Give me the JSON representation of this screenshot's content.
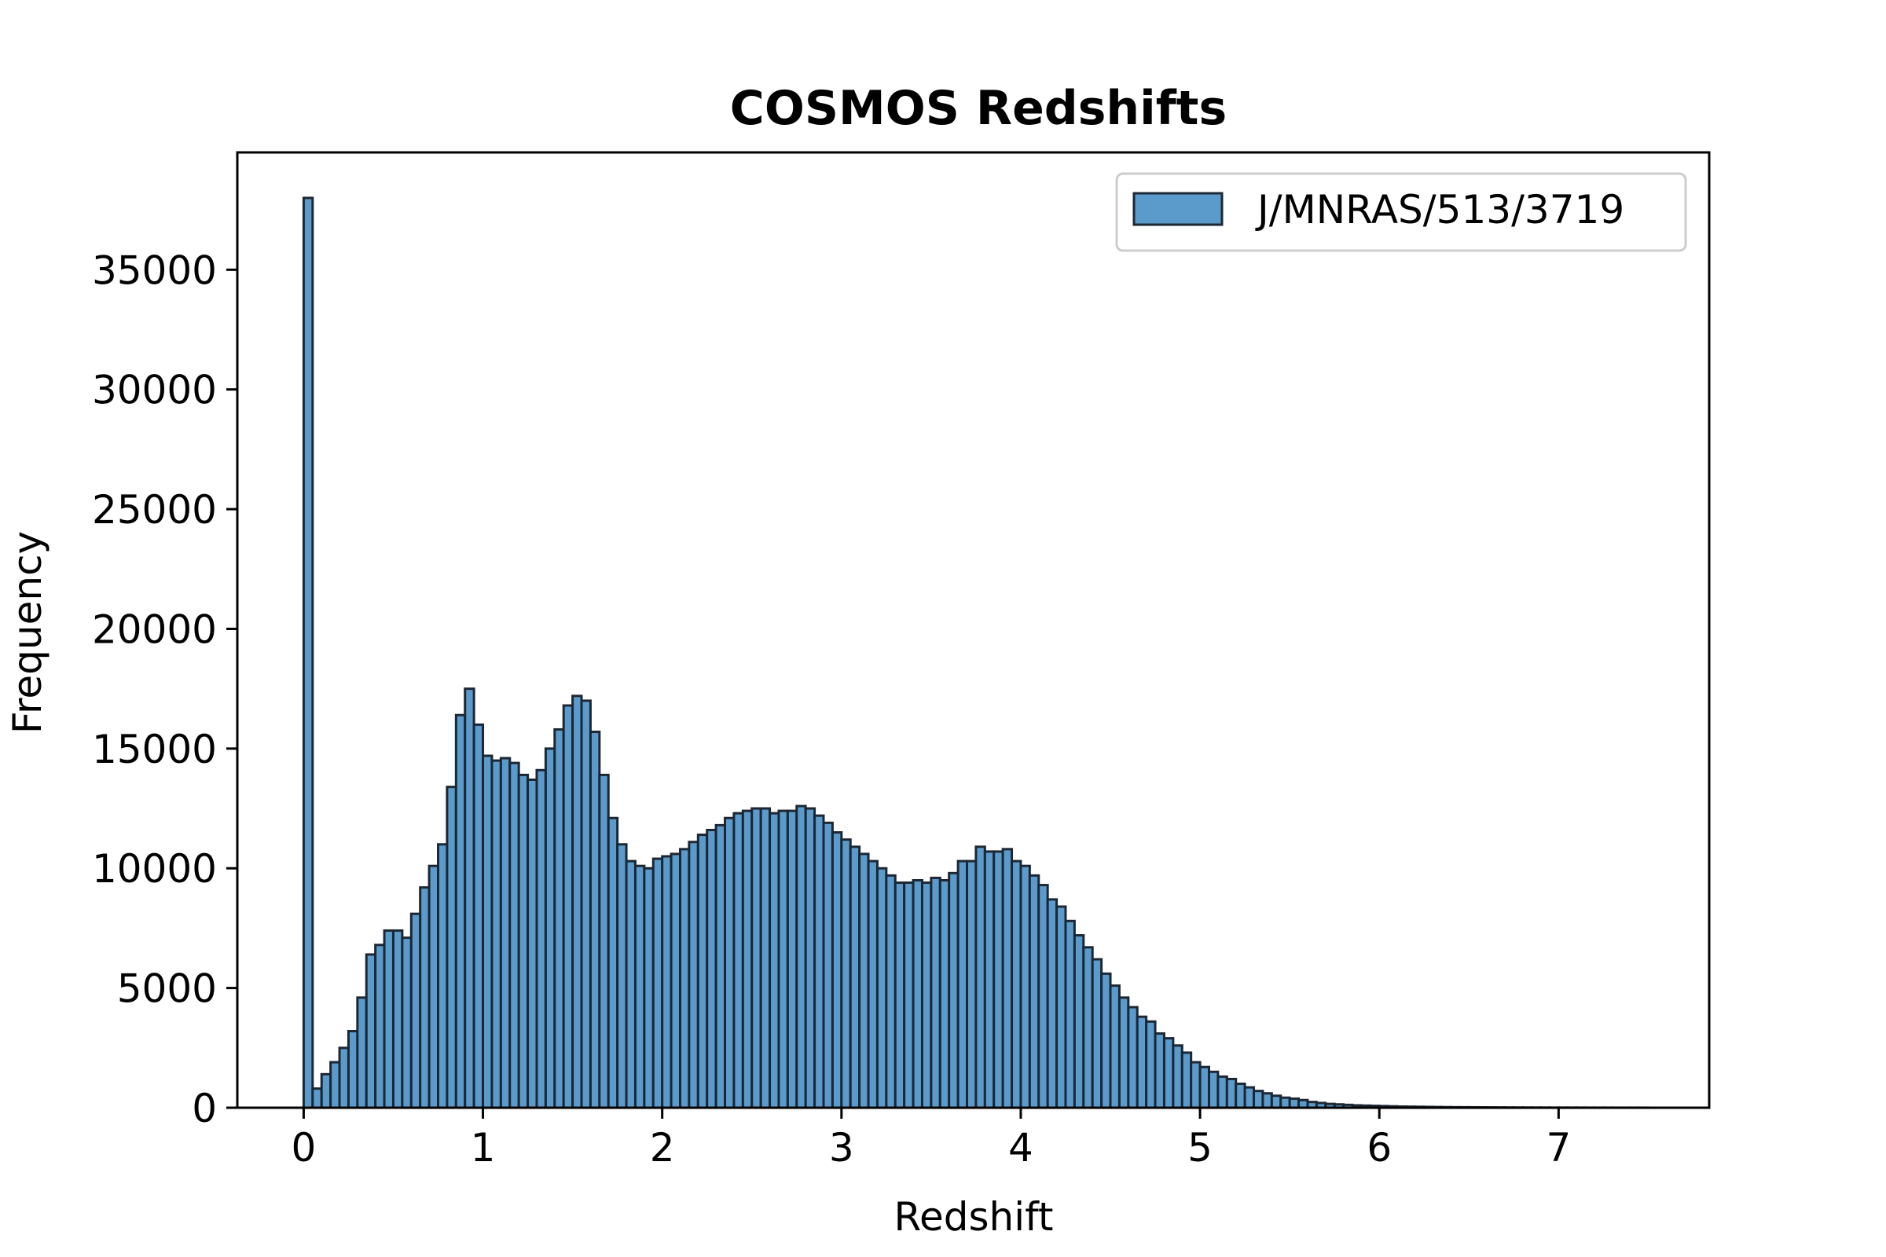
{
  "chart_data": {
    "type": "bar",
    "title": "COSMOS Redshifts",
    "xlabel": "Redshift",
    "ylabel": "Frequency",
    "xlim": [
      -0.37,
      7.84
    ],
    "ylim": [
      0,
      39900
    ],
    "xticks": [
      "0",
      "1",
      "2",
      "3",
      "4",
      "5",
      "6",
      "7"
    ],
    "yticks": [
      "0",
      "5000",
      "10000",
      "15000",
      "20000",
      "25000",
      "30000",
      "35000"
    ],
    "bin_start": 0,
    "bin_width": 0.05,
    "grid": false,
    "legend_position": "top-right",
    "bar_color": "#5b9bcb",
    "edge_color": "#1c2733",
    "series": [
      {
        "name": "J/MNRAS/513/3719",
        "values": [
          38000,
          800,
          1400,
          1900,
          2500,
          3200,
          4600,
          6400,
          6800,
          7400,
          7400,
          7100,
          8100,
          9200,
          10100,
          11000,
          13400,
          16400,
          17500,
          16000,
          14700,
          14500,
          14600,
          14400,
          13900,
          13700,
          14100,
          15000,
          15800,
          16800,
          17200,
          17000,
          15700,
          13900,
          12100,
          11000,
          10300,
          10100,
          10000,
          10400,
          10500,
          10600,
          10800,
          11100,
          11400,
          11600,
          11800,
          12100,
          12300,
          12400,
          12500,
          12500,
          12300,
          12400,
          12400,
          12600,
          12500,
          12200,
          11900,
          11500,
          11200,
          10900,
          10600,
          10300,
          10000,
          9700,
          9400,
          9400,
          9500,
          9400,
          9600,
          9500,
          9800,
          10300,
          10300,
          10900,
          10700,
          10700,
          10800,
          10300,
          10100,
          9700,
          9300,
          8700,
          8400,
          7800,
          7200,
          6700,
          6200,
          5600,
          5100,
          4600,
          4200,
          3800,
          3600,
          3100,
          2900,
          2600,
          2300,
          1900,
          1700,
          1500,
          1300,
          1200,
          1000,
          850,
          700,
          600,
          500,
          420,
          380,
          320,
          240,
          200,
          160,
          140,
          120,
          100,
          90,
          80,
          70,
          60,
          50,
          45,
          40,
          35,
          30,
          25,
          22,
          20,
          18,
          16,
          14,
          12,
          10,
          9,
          8,
          7,
          6,
          5,
          5,
          4,
          4,
          3,
          3,
          3,
          2,
          2,
          2,
          2
        ]
      }
    ]
  }
}
